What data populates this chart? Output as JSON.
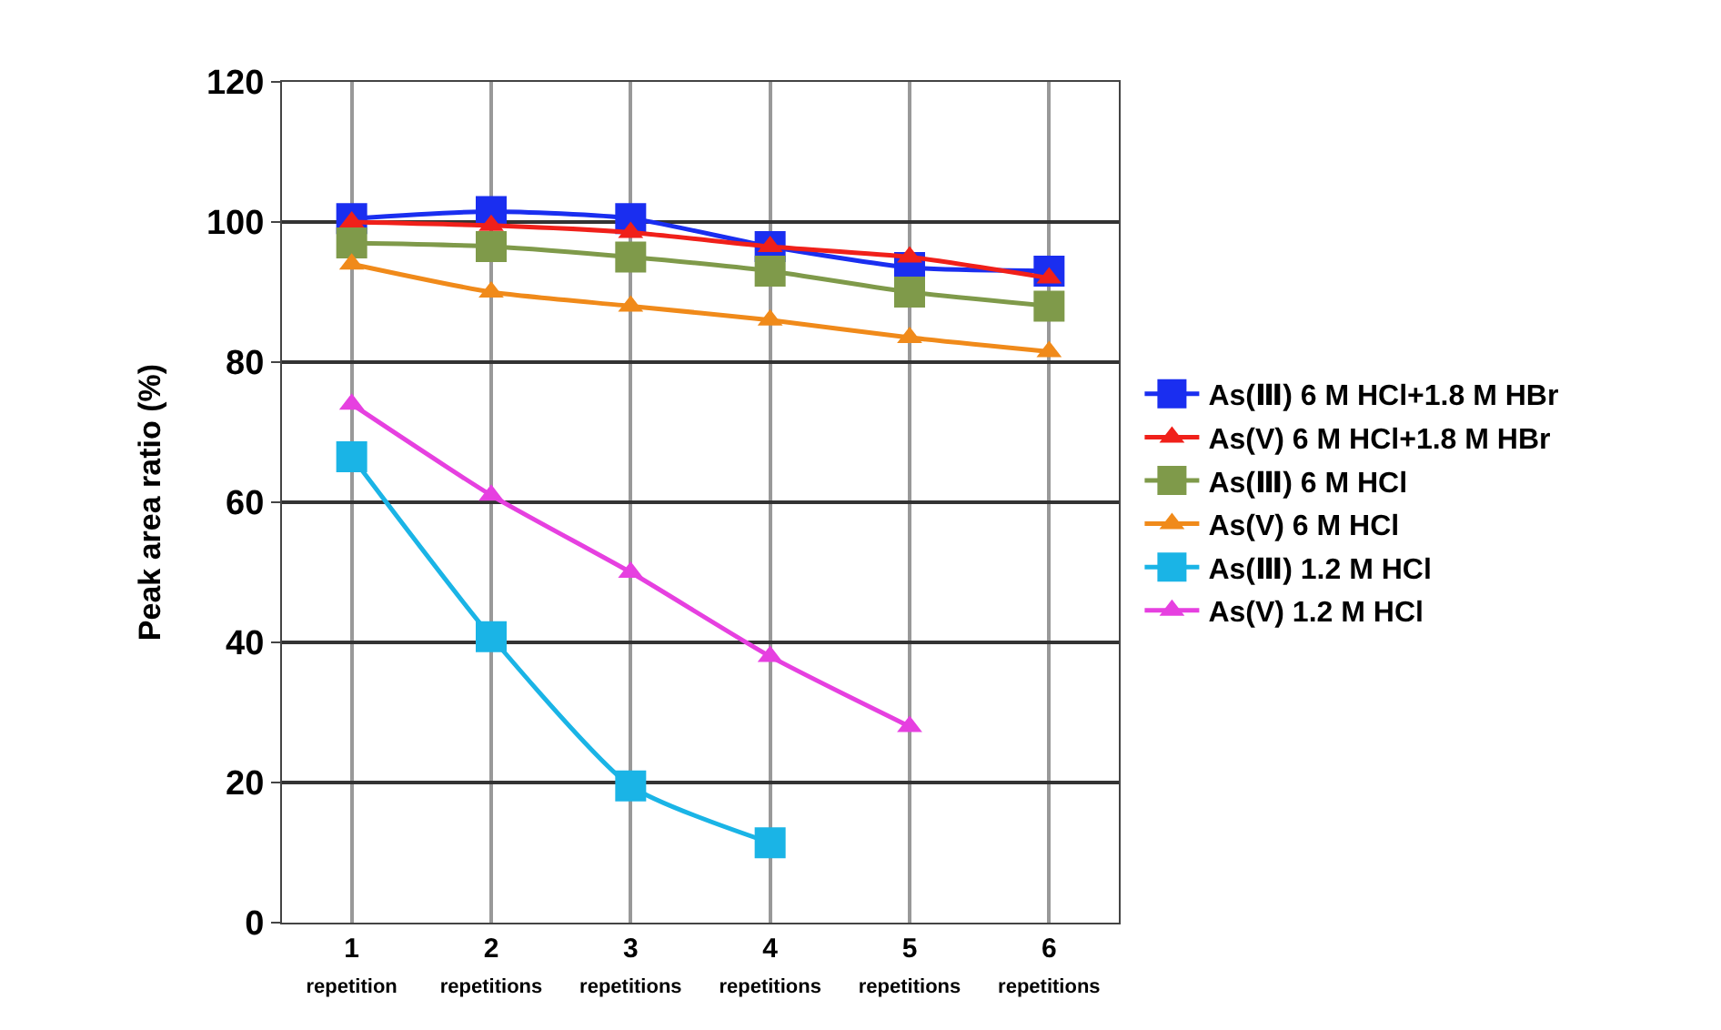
{
  "chart_data": {
    "type": "line",
    "ylabel": "Peak area ratio (%)",
    "categories": [
      "1\nrepetition",
      "2\nrepetitions",
      "3\nrepetitions",
      "4\nrepetitions",
      "5\nrepetitions",
      "6\nrepetitions"
    ],
    "series": [
      {
        "name": "As(Ⅲ) 6 M HCl+1.8 M HBr",
        "color": "#1a2ef0",
        "marker": "square",
        "values": [
          100.5,
          101.5,
          100.5,
          96.5,
          93.5,
          93
        ]
      },
      {
        "name": "As(V) 6 M HCl+1.8 M HBr",
        "color": "#f0201a",
        "marker": "triangle",
        "values": [
          100,
          99.5,
          98.5,
          96.5,
          95,
          92
        ]
      },
      {
        "name": "As(Ⅲ) 6 M HCl",
        "color": "#7f9a4a",
        "marker": "square",
        "values": [
          97,
          96.5,
          95,
          93,
          90,
          88
        ]
      },
      {
        "name": "As(V) 6 M HCl",
        "color": "#f08a1a",
        "marker": "triangle",
        "values": [
          94,
          90,
          88,
          86,
          83.5,
          81.5
        ]
      },
      {
        "name": "As(Ⅲ) 1.2 M HCl",
        "color": "#1ab4e6",
        "marker": "square",
        "values": [
          66.5,
          40.8,
          19.5,
          11.4,
          null,
          null
        ]
      },
      {
        "name": "As(V) 1.2 M HCl",
        "color": "#e640e0",
        "marker": "triangle",
        "values": [
          74,
          61,
          50,
          38,
          28,
          null
        ]
      }
    ],
    "ylim": [
      0,
      120
    ],
    "yticks": [
      0,
      20,
      40,
      60,
      80,
      100,
      120
    ],
    "grid": true,
    "legend": "right",
    "line_style": "solid"
  }
}
